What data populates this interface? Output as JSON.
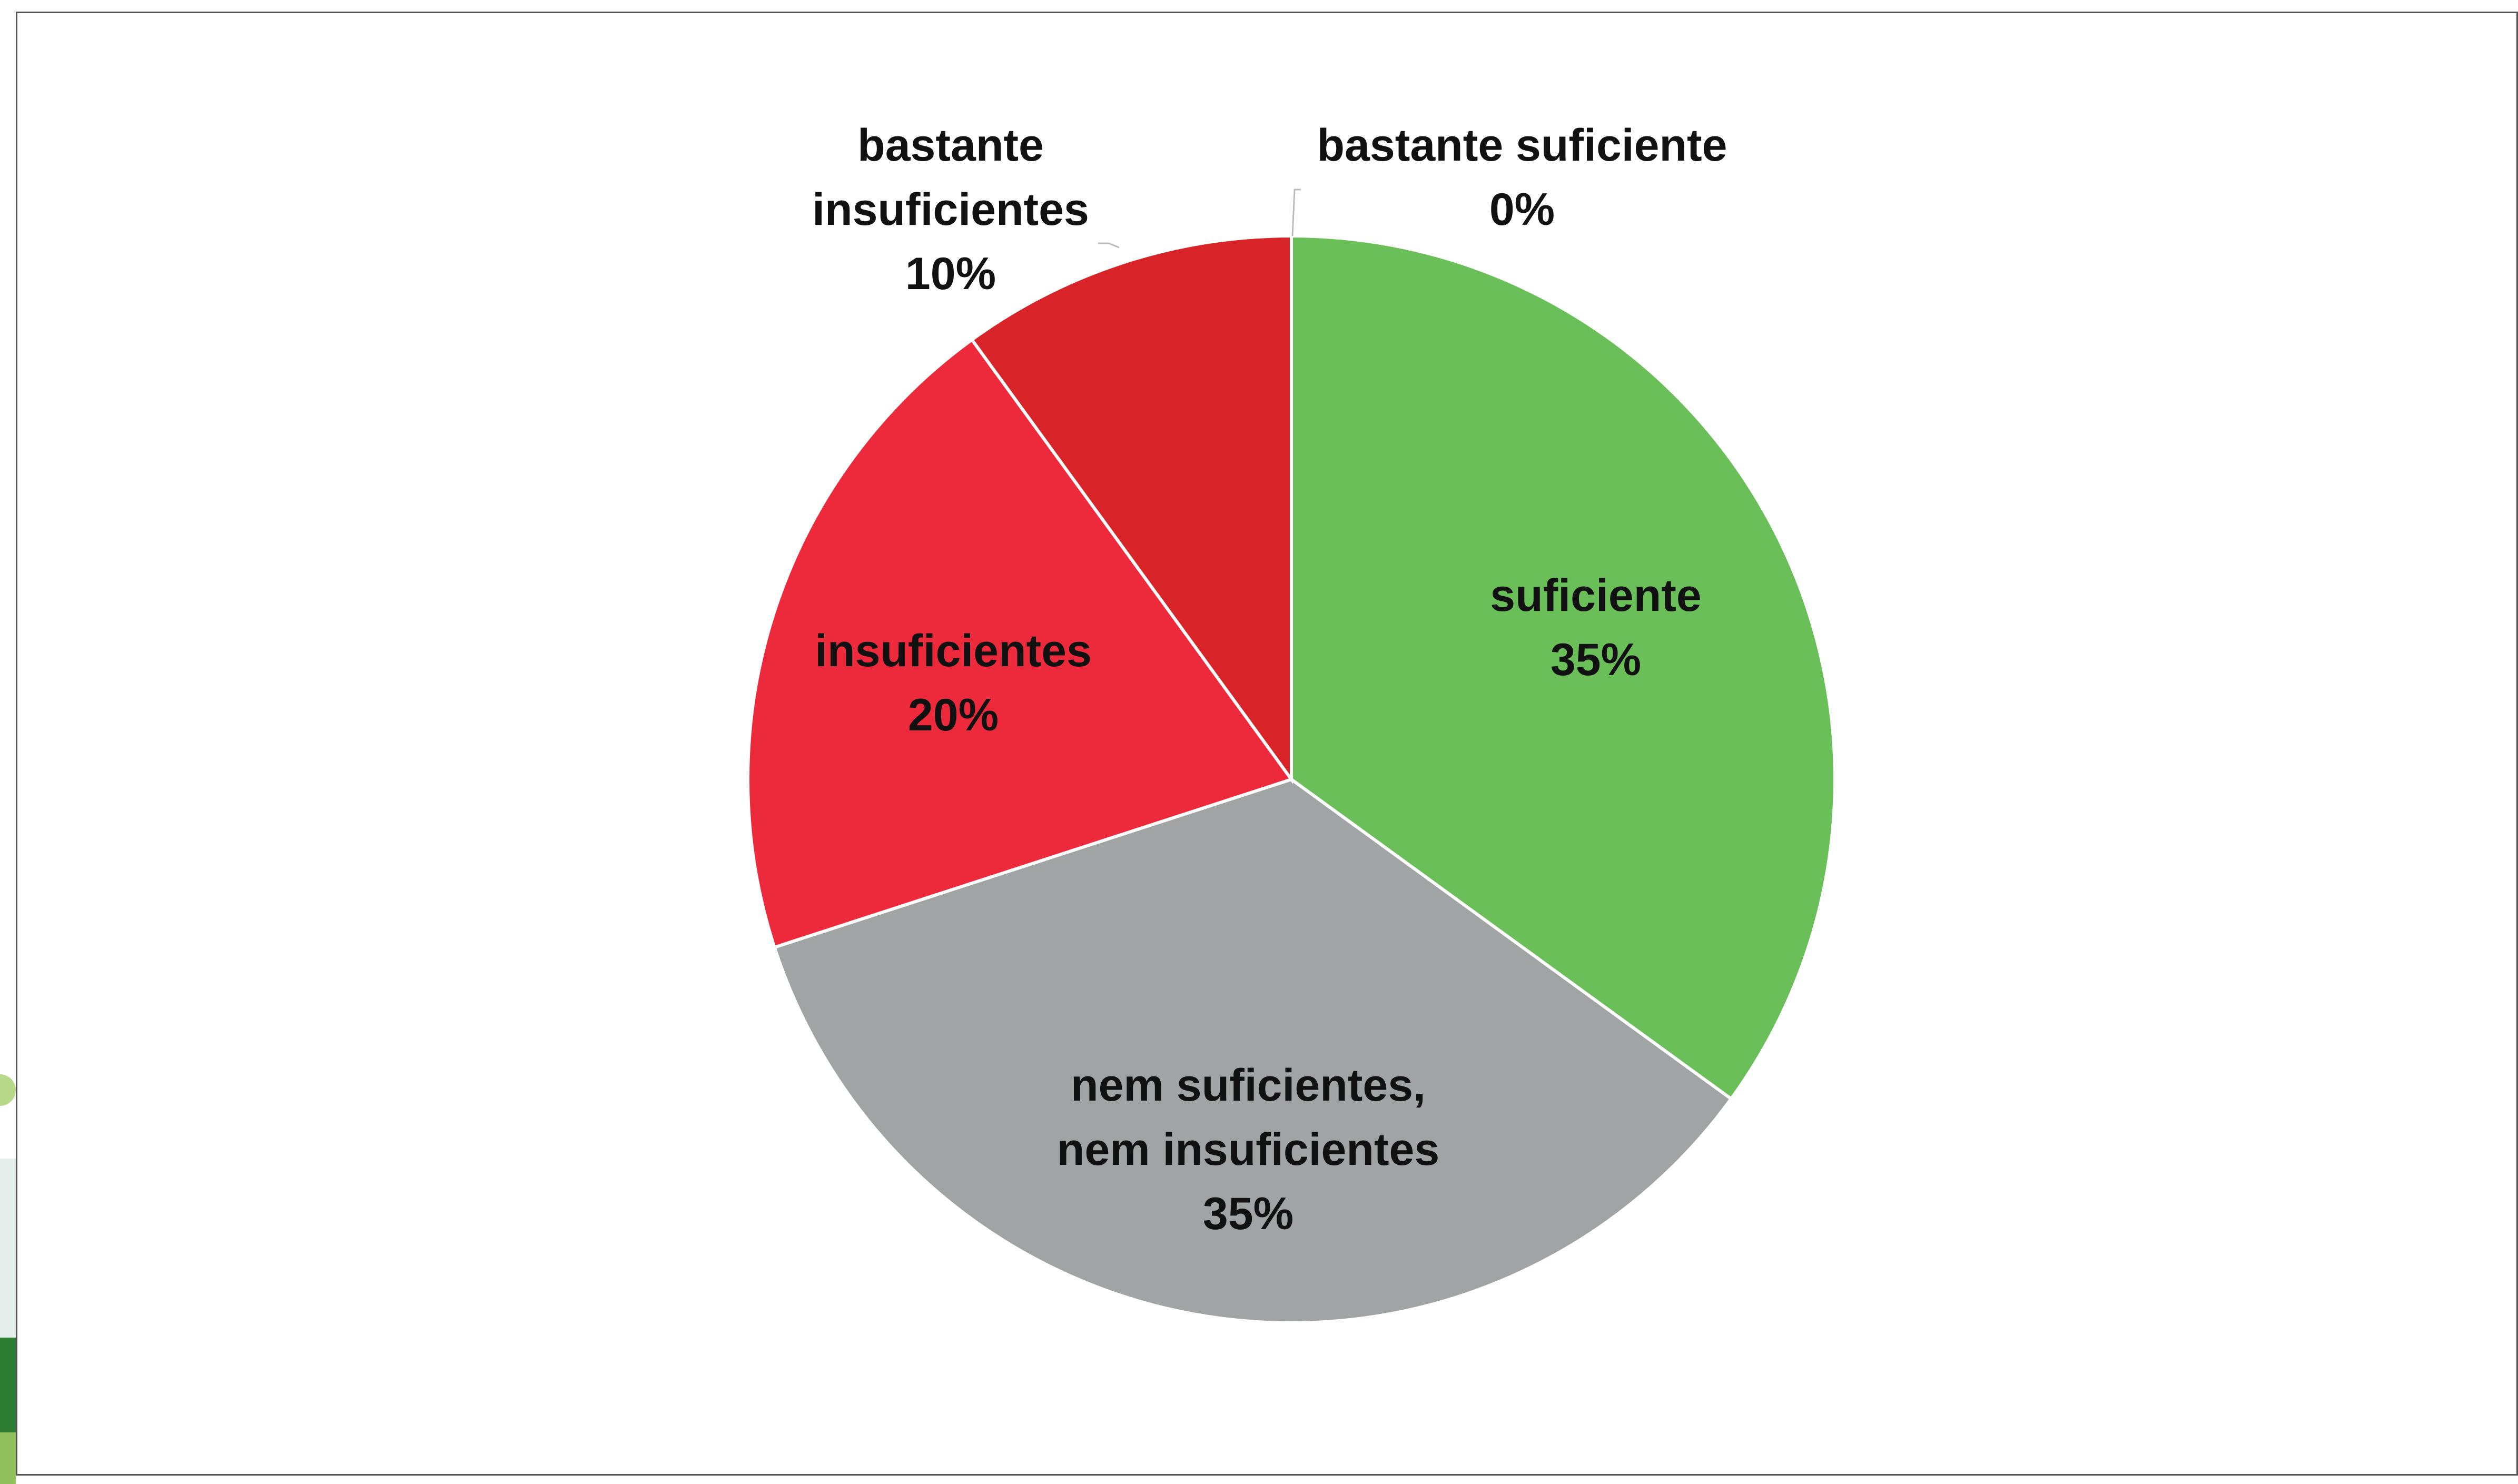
{
  "chart_data": {
    "type": "pie",
    "title": "",
    "slices": [
      {
        "label": "suficiente",
        "value": 35,
        "value_label": "35%",
        "color": "#6abf59"
      },
      {
        "label": "nem suficientes, nem insuficientes",
        "value": 35,
        "value_label": "35%",
        "color": "#a1a4a5"
      },
      {
        "label": "insuficientes",
        "value": 20,
        "value_label": "20%",
        "color": "#ec2a3c"
      },
      {
        "label": "bastante insuficientes",
        "value": 10,
        "value_label": "10%",
        "color": "#d82329"
      },
      {
        "label": "bastante suficiente",
        "value": 0,
        "value_label": "0%",
        "color": "#4e9a3a"
      }
    ],
    "start_angle": "top, clockwise",
    "legend": "none"
  }
}
